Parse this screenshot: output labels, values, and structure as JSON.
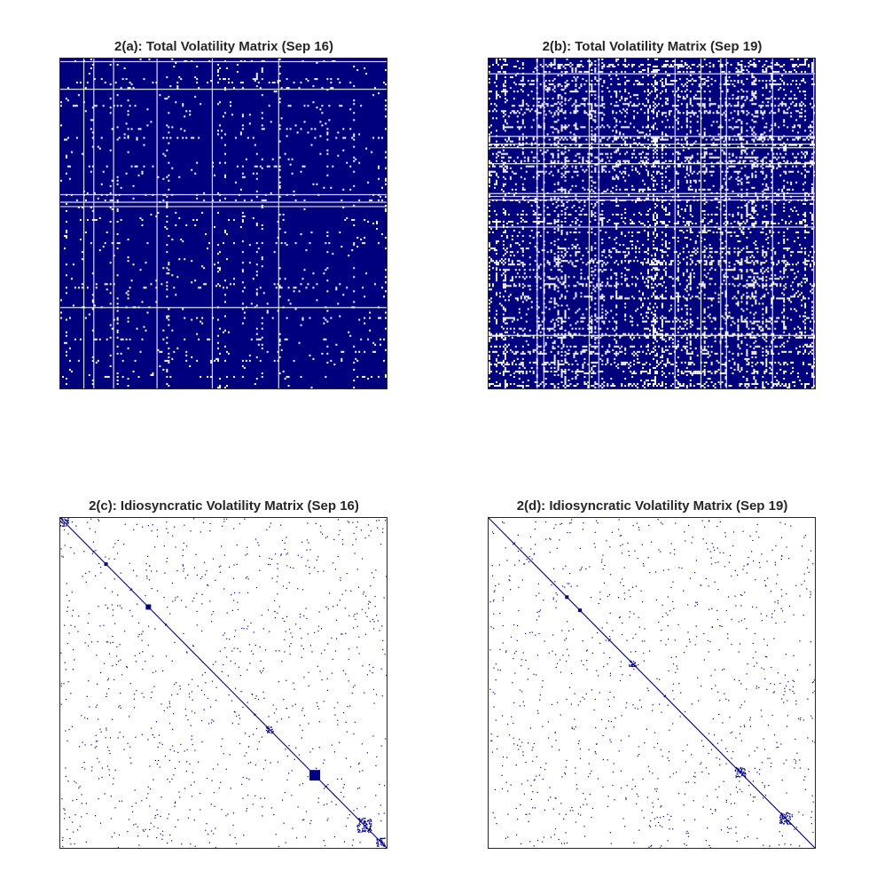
{
  "chart_data": [
    {
      "type": "heatmap",
      "title": "2(a): Total Volatility Matrix (Sep 16)",
      "colors": {
        "nonzero": "#00007f",
        "zero": "#ffffff"
      },
      "pattern": "mostly-dense",
      "density": 0.9,
      "grid": false
    },
    {
      "type": "heatmap",
      "title": "2(b): Total Volatility Matrix (Sep 19)",
      "colors": {
        "nonzero": "#00007f",
        "zero": "#ffffff"
      },
      "pattern": "dense",
      "density": 0.7,
      "grid": false
    },
    {
      "type": "heatmap",
      "title": "2(c): Idiosyncratic Volatility Matrix (Sep 16)",
      "colors": {
        "nonzero": "#00007f",
        "zero": "#ffffff"
      },
      "pattern": "sparse-diagonal",
      "density": 0.02,
      "grid": false
    },
    {
      "type": "heatmap",
      "title": "2(d): Idiosyncratic Volatility Matrix (Sep 19)",
      "colors": {
        "nonzero": "#00007f",
        "zero": "#ffffff"
      },
      "pattern": "sparse-diagonal",
      "density": 0.02,
      "grid": false
    }
  ]
}
